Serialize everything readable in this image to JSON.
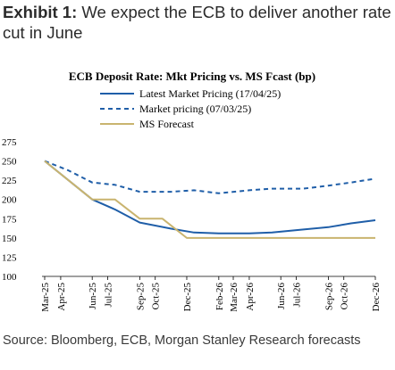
{
  "exhibit": {
    "label": "Exhibit 1:",
    "text": " We expect the ECB to deliver another rate cut in June"
  },
  "source": "Source: Bloomberg, ECB, Morgan Stanley Research forecasts",
  "chart_data": {
    "type": "line",
    "title": "ECB Deposit Rate: Mkt Pricing vs. MS Fcast (bp)",
    "xlabel": "",
    "ylabel": "",
    "ylim": [
      100,
      275
    ],
    "yticks": [
      100,
      125,
      150,
      175,
      200,
      225,
      250,
      275
    ],
    "xlim": [
      "2025-03-01",
      "2026-12-01"
    ],
    "xticks": [
      "Mar-25",
      "Apr-25",
      "Jun-25",
      "Jul-25",
      "Sep-25",
      "Oct-25",
      "Dec-25",
      "Feb-26",
      "Mar-26",
      "Apr-26",
      "Jun-26",
      "Jul-26",
      "Sep-26",
      "Oct-26",
      "Dec-26"
    ],
    "legend_position": "top",
    "grid": false,
    "series": [
      {
        "name": "Latest Market Pricing (17/04/25)",
        "color": "#1f5ea8",
        "style": "solid",
        "points": [
          [
            "2025-03-01",
            250
          ],
          [
            "2025-06-01",
            200
          ],
          [
            "2025-07-15",
            187
          ],
          [
            "2025-09-01",
            170
          ],
          [
            "2025-11-01",
            162
          ],
          [
            "2025-12-15",
            157
          ],
          [
            "2026-02-01",
            156
          ],
          [
            "2026-04-01",
            156
          ],
          [
            "2026-05-15",
            157
          ],
          [
            "2026-07-15",
            161
          ],
          [
            "2026-09-01",
            164
          ],
          [
            "2026-10-15",
            169
          ],
          [
            "2026-12-01",
            173
          ]
        ]
      },
      {
        "name": "Market pricing (07/03/25)",
        "color": "#1f5ea8",
        "style": "dashed",
        "points": [
          [
            "2025-03-01",
            250
          ],
          [
            "2025-04-15",
            238
          ],
          [
            "2025-06-01",
            222
          ],
          [
            "2025-07-15",
            219
          ],
          [
            "2025-09-01",
            210
          ],
          [
            "2025-11-01",
            210
          ],
          [
            "2025-12-15",
            212
          ],
          [
            "2026-02-01",
            208
          ],
          [
            "2026-04-01",
            212
          ],
          [
            "2026-05-15",
            214
          ],
          [
            "2026-07-15",
            214
          ],
          [
            "2026-09-01",
            218
          ],
          [
            "2026-10-15",
            222
          ],
          [
            "2026-12-01",
            227
          ]
        ]
      },
      {
        "name": "MS Forecast",
        "color": "#c9b46f",
        "style": "solid",
        "points": [
          [
            "2025-03-01",
            250
          ],
          [
            "2025-06-01",
            200
          ],
          [
            "2025-07-15",
            200
          ],
          [
            "2025-09-01",
            175
          ],
          [
            "2025-10-15",
            175
          ],
          [
            "2025-12-01",
            150
          ],
          [
            "2026-12-01",
            150
          ]
        ]
      }
    ]
  }
}
